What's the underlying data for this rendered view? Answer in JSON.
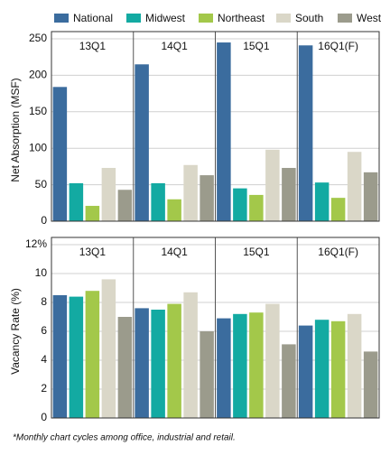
{
  "chart_data": [
    {
      "type": "bar",
      "y_label": "Net Absorption (MSF)",
      "categories": [
        "13Q1",
        "14Q1",
        "15Q1",
        "16Q1(F)"
      ],
      "series": [
        {
          "name": "National",
          "color": "#3b6c9e",
          "values": [
            184,
            215,
            245,
            241
          ]
        },
        {
          "name": "Midwest",
          "color": "#13aaa2",
          "values": [
            52,
            52,
            45,
            53
          ]
        },
        {
          "name": "Northeast",
          "color": "#a3c84a",
          "values": [
            21,
            30,
            36,
            32
          ]
        },
        {
          "name": "South",
          "color": "#dad7c8",
          "values": [
            73,
            77,
            98,
            95
          ]
        },
        {
          "name": "West",
          "color": "#9b9b8c",
          "values": [
            43,
            63,
            73,
            67
          ]
        }
      ],
      "ylim": [
        0,
        250
      ],
      "yticks": [
        0,
        50,
        100,
        150,
        200,
        250
      ],
      "grid": true
    },
    {
      "type": "bar",
      "y_label": "Vacancy Rate (%)",
      "categories": [
        "13Q1",
        "14Q1",
        "15Q1",
        "16Q1(F)"
      ],
      "series": [
        {
          "color": "#3b6c9e",
          "values": [
            8.5,
            7.6,
            6.9,
            6.4
          ]
        },
        {
          "color": "#13aaa2",
          "values": [
            8.4,
            7.5,
            7.2,
            6.8
          ]
        },
        {
          "color": "#a3c84a",
          "values": [
            8.8,
            7.9,
            7.3,
            6.7
          ]
        },
        {
          "color": "#dad7c8",
          "values": [
            9.6,
            8.7,
            7.9,
            7.2
          ]
        },
        {
          "color": "#9b9b8c",
          "values": [
            7.0,
            6.0,
            5.1,
            4.6
          ]
        }
      ],
      "ylim": [
        0,
        12
      ],
      "yticks": [
        0,
        2,
        4,
        6,
        8,
        10,
        {
          "value": 12,
          "label": "12%"
        }
      ],
      "grid": true,
      "footnote": "*Monthly chart cycles among office, industrial and retail."
    }
  ]
}
